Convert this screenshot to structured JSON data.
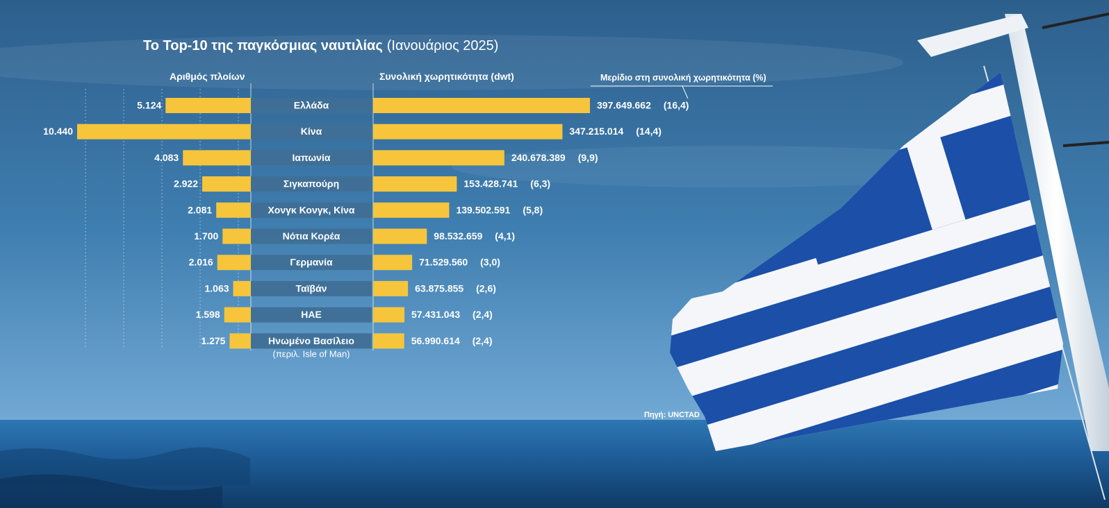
{
  "title": "Το Top-10 της παγκόσμιας ναυτιλίας",
  "subtitle": "(Ιανουάριος 2025)",
  "source": "Πηγή: UNCTAD",
  "colors": {
    "bar": "#f6c53b",
    "label_box": "#3f6f96",
    "text": "#ffffff",
    "flag_blue": "#1b4fa8",
    "flag_white": "#f4f6fa"
  },
  "chart_data": {
    "type": "bar",
    "layout": "butterfly",
    "categories": [
      "Ελλάδα",
      "Κίνα",
      "Ιαπωνία",
      "Σιγκαπούρη",
      "Χονγκ Κονγκ, Κίνα",
      "Νότια Κορέα",
      "Γερμανία",
      "Ταϊβάν",
      "ΗΑΕ",
      "Ηνωμένο Βασίλειο"
    ],
    "category_notes": [
      "",
      "",
      "",
      "",
      "",
      "",
      "",
      "",
      "",
      "(περιλ. Isle of Man)"
    ],
    "series": [
      {
        "name": "Αριθμός πλοίων",
        "values": [
          5124,
          10440,
          4083,
          2922,
          2081,
          1700,
          2016,
          1063,
          1598,
          1275
        ],
        "labels": [
          "5.124",
          "10.440",
          "4.083",
          "2.922",
          "2.081",
          "1.700",
          "2.016",
          "1.063",
          "1.598",
          "1.275"
        ]
      },
      {
        "name": "Συνολική χωρητικότητα (dwt)",
        "values": [
          397649662,
          347215014,
          240678389,
          153428741,
          139502591,
          98532659,
          71529560,
          63875855,
          57431043,
          56990614
        ],
        "labels": [
          "397.649.662",
          "347.215.014",
          "240.678.389",
          "153.428.741",
          "139.502.591",
          "98.532.659",
          "71.529.560",
          "63.875.855",
          "57.431.043",
          "56.990.614"
        ]
      },
      {
        "name": "Μερίδιο στη συνολική χωρητικότητα (%)",
        "values": [
          16.4,
          14.4,
          9.9,
          6.3,
          5.8,
          4.1,
          3.0,
          2.6,
          2.4,
          2.4
        ],
        "labels": [
          "(16,4)",
          "(14,4)",
          "(9,9)",
          "(6,3)",
          "(5,8)",
          "(4,1)",
          "(3,0)",
          "(2,6)",
          "(2,4)",
          "(2,4)"
        ]
      }
    ],
    "ylim_ships": [
      0,
      10440
    ],
    "ylim_dwt": [
      0,
      397649662
    ],
    "grid": true
  }
}
